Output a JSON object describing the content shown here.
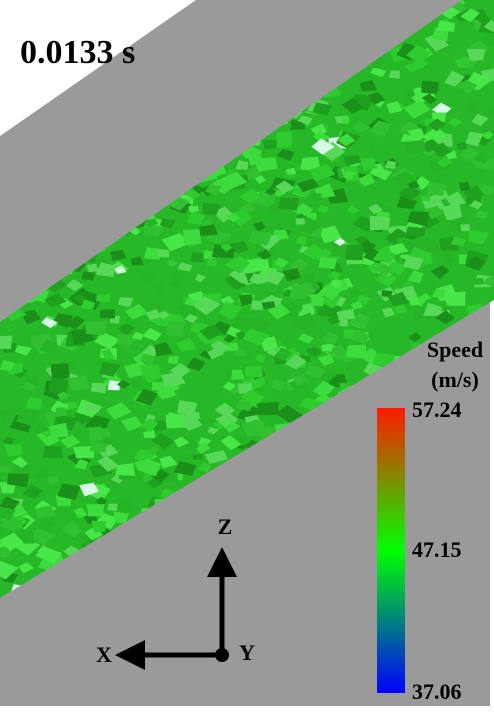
{
  "time_label": "0.0133 s",
  "colorbar": {
    "title": "Speed",
    "unit": "(m/s)",
    "max": "57.24",
    "mid": "47.15",
    "min": "37.06"
  },
  "axes": {
    "z": "Z",
    "x": "X",
    "y": "Y"
  }
}
